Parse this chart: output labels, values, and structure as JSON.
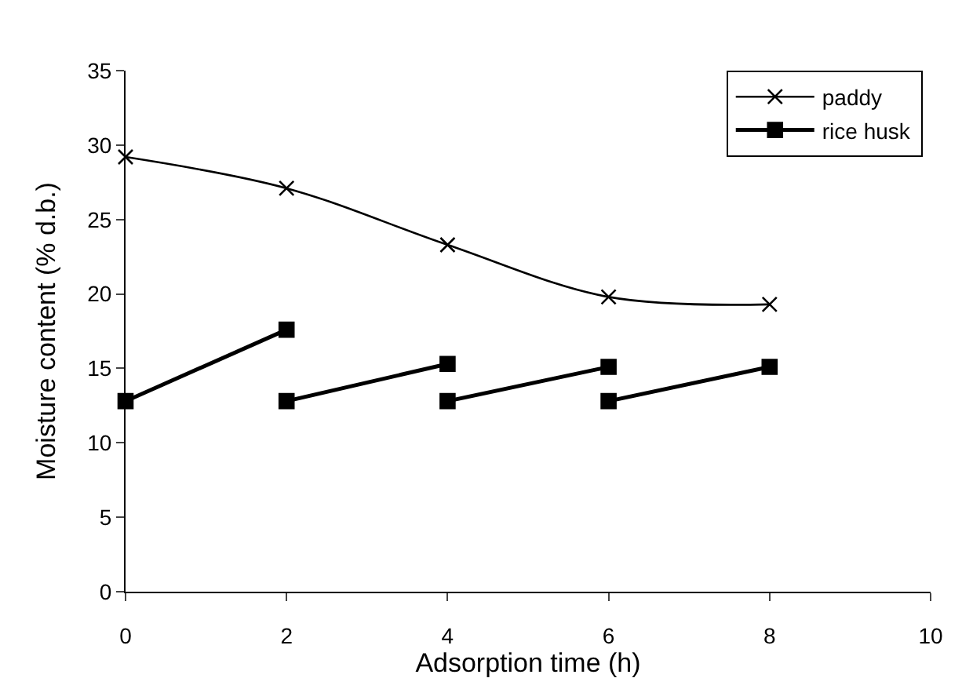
{
  "chart_data": {
    "type": "line",
    "xlabel": "Adsorption time (h)",
    "ylabel": "Moisture content (% d.b.)",
    "x": [
      0,
      2,
      4,
      6,
      8
    ],
    "series": [
      {
        "name": "paddy",
        "color": "#000000",
        "marker": "cross",
        "values": [
          29.2,
          27.1,
          23.3,
          19.8,
          19.3
        ]
      },
      {
        "name": "rice husk",
        "color": "#000000",
        "marker": "square",
        "x": [
          0,
          2
        ],
        "values": [
          12.8,
          17.6
        ]
      },
      {
        "color": "#000000",
        "marker": "square",
        "x": [
          2,
          4
        ],
        "values": [
          12.8,
          15.3
        ]
      },
      {
        "color": "#000000",
        "marker": "square",
        "x": [
          4,
          6
        ],
        "values": [
          12.8,
          15.1
        ]
      },
      {
        "color": "#000000",
        "marker": "square",
        "x": [
          6,
          8
        ],
        "values": [
          12.8,
          15.1
        ]
      }
    ],
    "xlim": [
      0,
      10
    ],
    "xticks": [
      0,
      2,
      4,
      6,
      8,
      10
    ],
    "ylim": [
      0,
      35
    ],
    "yticks": [
      0,
      5,
      10,
      15,
      20,
      25,
      30,
      35
    ],
    "legend": "top right",
    "line_style": "solid"
  }
}
